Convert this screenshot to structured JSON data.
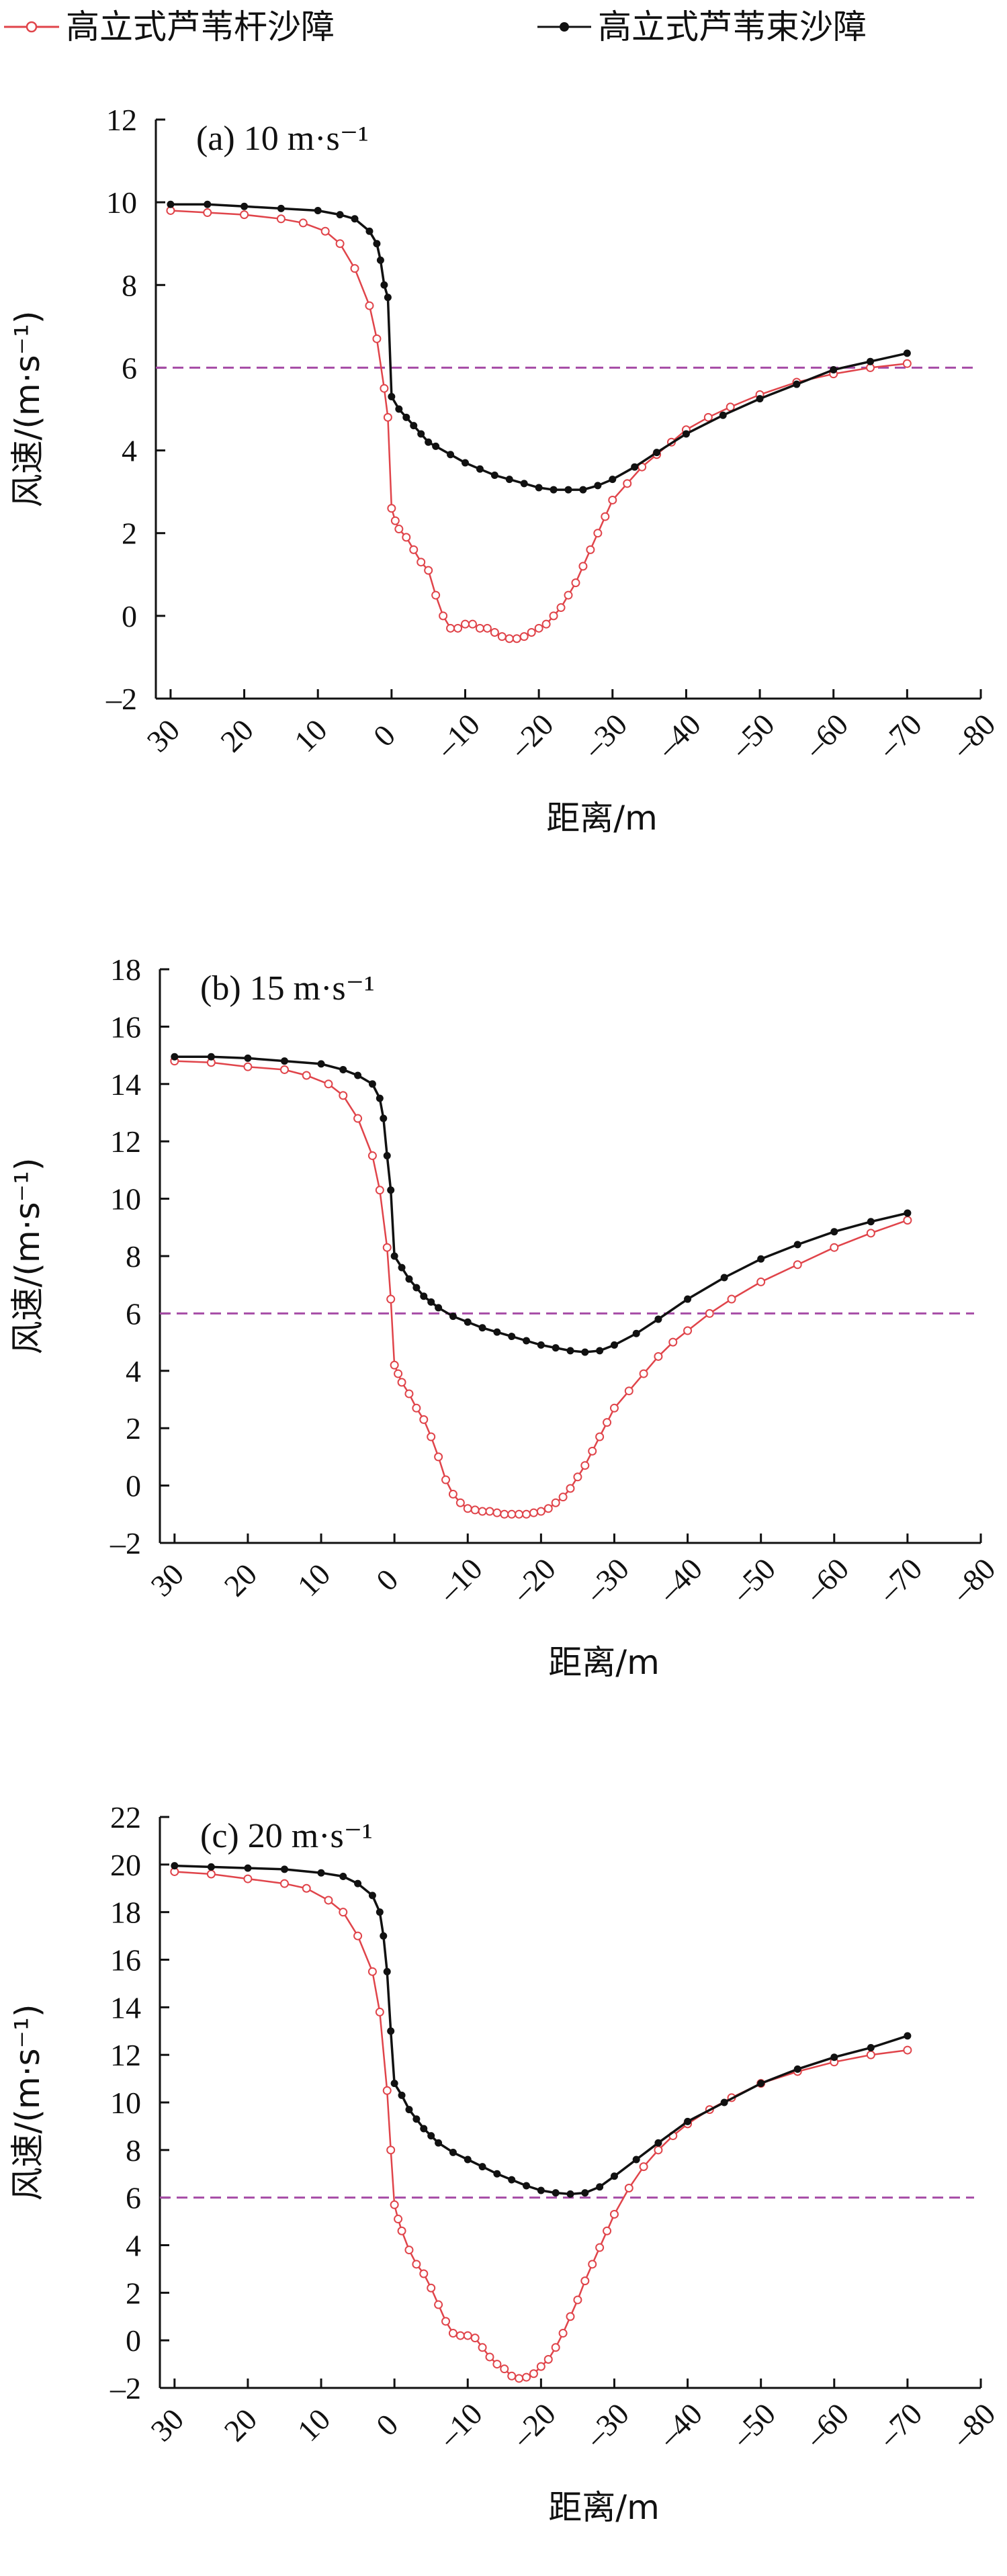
{
  "legend": [
    {
      "name": "高立式芦苇杆沙障",
      "color": "#e0444a",
      "marker": "open-circle"
    },
    {
      "name": "高立式芦苇束沙障",
      "color": "#111111",
      "marker": "filled-dot"
    }
  ],
  "reference_line": {
    "y": 6,
    "color": "#a64ca6",
    "style": "dashed"
  },
  "chart_data": [
    {
      "type": "line",
      "title": "(a) 10 m·s⁻¹",
      "xlabel": "距离/m",
      "ylabel": "风速/(m·s⁻¹)",
      "xlim": [
        32,
        -80
      ],
      "ylim": [
        -2,
        12
      ],
      "xticks": [
        "30",
        "20",
        "10",
        "0",
        "–10",
        "–20",
        "–30",
        "–40",
        "–50",
        "–60",
        "–70",
        "–80"
      ],
      "yticks": [
        "–2",
        "0",
        "2",
        "4",
        "6",
        "8",
        "10",
        "12"
      ],
      "series": [
        {
          "name": "高立式芦苇杆沙障",
          "x": [
            30,
            25,
            20,
            15,
            12,
            9,
            7,
            5,
            3,
            2,
            1,
            0.5,
            0,
            -0.5,
            -1,
            -2,
            -3,
            -4,
            -5,
            -6,
            -7,
            -8,
            -9,
            -10,
            -11,
            -12,
            -13,
            -14,
            -15,
            -16,
            -17,
            -18,
            -19,
            -20,
            -21,
            -22,
            -23,
            -24,
            -25,
            -26,
            -27,
            -28,
            -29,
            -30,
            -32,
            -34,
            -36,
            -38,
            -40,
            -43,
            -46,
            -50,
            -55,
            -60,
            -65,
            -70
          ],
          "values": [
            9.8,
            9.75,
            9.7,
            9.6,
            9.5,
            9.3,
            9.0,
            8.4,
            7.5,
            6.7,
            5.5,
            4.8,
            2.6,
            2.3,
            2.1,
            1.9,
            1.6,
            1.3,
            1.1,
            0.5,
            0.0,
            -0.3,
            -0.3,
            -0.2,
            -0.2,
            -0.3,
            -0.3,
            -0.4,
            -0.5,
            -0.55,
            -0.55,
            -0.5,
            -0.4,
            -0.3,
            -0.2,
            0.0,
            0.2,
            0.5,
            0.8,
            1.2,
            1.6,
            2.0,
            2.4,
            2.8,
            3.2,
            3.6,
            3.9,
            4.2,
            4.5,
            4.8,
            5.05,
            5.35,
            5.65,
            5.85,
            6.0,
            6.1
          ]
        },
        {
          "name": "高立式芦苇束沙障",
          "x": [
            30,
            25,
            20,
            15,
            10,
            7,
            5,
            3,
            2,
            1.5,
            1,
            0.5,
            0,
            -1,
            -2,
            -3,
            -4,
            -5,
            -6,
            -8,
            -10,
            -12,
            -14,
            -16,
            -18,
            -20,
            -22,
            -24,
            -26,
            -28,
            -30,
            -33,
            -36,
            -40,
            -45,
            -50,
            -55,
            -60,
            -65,
            -70
          ],
          "values": [
            9.95,
            9.95,
            9.9,
            9.85,
            9.8,
            9.7,
            9.6,
            9.3,
            9.0,
            8.6,
            8.0,
            7.7,
            5.3,
            5.0,
            4.8,
            4.6,
            4.4,
            4.2,
            4.1,
            3.9,
            3.7,
            3.55,
            3.4,
            3.3,
            3.2,
            3.1,
            3.05,
            3.05,
            3.05,
            3.15,
            3.3,
            3.6,
            3.95,
            4.4,
            4.85,
            5.25,
            5.6,
            5.95,
            6.15,
            6.35
          ]
        }
      ]
    },
    {
      "type": "line",
      "title": "(b) 15 m·s⁻¹",
      "xlabel": "距离/m",
      "ylabel": "风速/(m·s⁻¹)",
      "xlim": [
        32,
        -80
      ],
      "ylim": [
        -2,
        18
      ],
      "xticks": [
        "30",
        "20",
        "10",
        "0",
        "–10",
        "–20",
        "–30",
        "–40",
        "–50",
        "–60",
        "–70",
        "–80"
      ],
      "yticks": [
        "–2",
        "0",
        "2",
        "4",
        "6",
        "8",
        "10",
        "12",
        "14",
        "16",
        "18"
      ],
      "series": [
        {
          "name": "高立式芦苇杆沙障",
          "x": [
            30,
            25,
            20,
            15,
            12,
            9,
            7,
            5,
            3,
            2,
            1,
            0.5,
            0,
            -0.5,
            -1,
            -2,
            -3,
            -4,
            -5,
            -6,
            -7,
            -8,
            -9,
            -10,
            -11,
            -12,
            -13,
            -14,
            -15,
            -16,
            -17,
            -18,
            -19,
            -20,
            -21,
            -22,
            -23,
            -24,
            -25,
            -26,
            -27,
            -28,
            -29,
            -30,
            -32,
            -34,
            -36,
            -38,
            -40,
            -43,
            -46,
            -50,
            -55,
            -60,
            -65,
            -70
          ],
          "values": [
            14.8,
            14.75,
            14.6,
            14.5,
            14.3,
            14.0,
            13.6,
            12.8,
            11.5,
            10.3,
            8.3,
            6.5,
            4.2,
            3.9,
            3.6,
            3.2,
            2.7,
            2.3,
            1.7,
            1.0,
            0.2,
            -0.3,
            -0.6,
            -0.8,
            -0.85,
            -0.9,
            -0.9,
            -0.95,
            -1.0,
            -1.0,
            -1.0,
            -1.0,
            -0.95,
            -0.9,
            -0.8,
            -0.6,
            -0.4,
            -0.1,
            0.3,
            0.7,
            1.2,
            1.7,
            2.2,
            2.7,
            3.3,
            3.9,
            4.5,
            5.0,
            5.4,
            6.0,
            6.5,
            7.1,
            7.7,
            8.3,
            8.8,
            9.25
          ]
        },
        {
          "name": "高立式芦苇束沙障",
          "x": [
            30,
            25,
            20,
            15,
            10,
            7,
            5,
            3,
            2,
            1.5,
            1,
            0.5,
            0,
            -1,
            -2,
            -3,
            -4,
            -5,
            -6,
            -8,
            -10,
            -12,
            -14,
            -16,
            -18,
            -20,
            -22,
            -24,
            -26,
            -28,
            -30,
            -33,
            -36,
            -40,
            -45,
            -50,
            -55,
            -60,
            -65,
            -70
          ],
          "values": [
            14.95,
            14.95,
            14.9,
            14.8,
            14.7,
            14.5,
            14.3,
            14.0,
            13.5,
            12.8,
            11.5,
            10.3,
            8.0,
            7.6,
            7.2,
            6.9,
            6.6,
            6.4,
            6.2,
            5.9,
            5.7,
            5.5,
            5.35,
            5.2,
            5.05,
            4.9,
            4.8,
            4.7,
            4.65,
            4.7,
            4.9,
            5.3,
            5.8,
            6.5,
            7.25,
            7.9,
            8.4,
            8.85,
            9.2,
            9.5
          ]
        }
      ]
    },
    {
      "type": "line",
      "title": "(c) 20 m·s⁻¹",
      "xlabel": "距离/m",
      "ylabel": "风速/(m·s⁻¹)",
      "xlim": [
        32,
        -80
      ],
      "ylim": [
        -2,
        22
      ],
      "xticks": [
        "30",
        "20",
        "10",
        "0",
        "–10",
        "–20",
        "–30",
        "–40",
        "–50",
        "–60",
        "–70",
        "–80"
      ],
      "yticks": [
        "–2",
        "0",
        "2",
        "4",
        "6",
        "8",
        "10",
        "12",
        "14",
        "16",
        "18",
        "20",
        "22"
      ],
      "series": [
        {
          "name": "高立式芦苇杆沙障",
          "x": [
            30,
            25,
            20,
            15,
            12,
            9,
            7,
            5,
            3,
            2,
            1,
            0.5,
            0,
            -0.5,
            -1,
            -2,
            -3,
            -4,
            -5,
            -6,
            -7,
            -8,
            -9,
            -10,
            -11,
            -12,
            -13,
            -14,
            -15,
            -16,
            -17,
            -18,
            -19,
            -20,
            -21,
            -22,
            -23,
            -24,
            -25,
            -26,
            -27,
            -28,
            -29,
            -30,
            -32,
            -34,
            -36,
            -38,
            -40,
            -43,
            -46,
            -50,
            -55,
            -60,
            -65,
            -70
          ],
          "values": [
            19.7,
            19.6,
            19.4,
            19.2,
            19.0,
            18.5,
            18.0,
            17.0,
            15.5,
            13.8,
            10.5,
            8.0,
            5.7,
            5.1,
            4.6,
            3.8,
            3.2,
            2.8,
            2.2,
            1.5,
            0.8,
            0.3,
            0.2,
            0.2,
            0.1,
            -0.3,
            -0.7,
            -1.0,
            -1.2,
            -1.5,
            -1.6,
            -1.55,
            -1.4,
            -1.1,
            -0.8,
            -0.3,
            0.3,
            1.0,
            1.7,
            2.5,
            3.2,
            3.9,
            4.6,
            5.3,
            6.4,
            7.3,
            8.0,
            8.6,
            9.1,
            9.7,
            10.2,
            10.8,
            11.3,
            11.7,
            12.0,
            12.2
          ]
        },
        {
          "name": "高立式芦苇束沙障",
          "x": [
            30,
            25,
            20,
            15,
            10,
            7,
            5,
            3,
            2,
            1.5,
            1,
            0.5,
            0,
            -1,
            -2,
            -3,
            -4,
            -5,
            -6,
            -8,
            -10,
            -12,
            -14,
            -16,
            -18,
            -20,
            -22,
            -24,
            -26,
            -28,
            -30,
            -33,
            -36,
            -40,
            -45,
            -50,
            -55,
            -60,
            -65,
            -70
          ],
          "values": [
            19.95,
            19.9,
            19.85,
            19.8,
            19.65,
            19.5,
            19.2,
            18.7,
            18.0,
            17.0,
            15.5,
            13.0,
            10.8,
            10.3,
            9.7,
            9.3,
            8.9,
            8.6,
            8.3,
            7.9,
            7.6,
            7.3,
            7.0,
            6.75,
            6.5,
            6.3,
            6.2,
            6.15,
            6.2,
            6.45,
            6.9,
            7.6,
            8.3,
            9.2,
            10.0,
            10.8,
            11.4,
            11.9,
            12.3,
            12.8
          ]
        }
      ]
    }
  ]
}
